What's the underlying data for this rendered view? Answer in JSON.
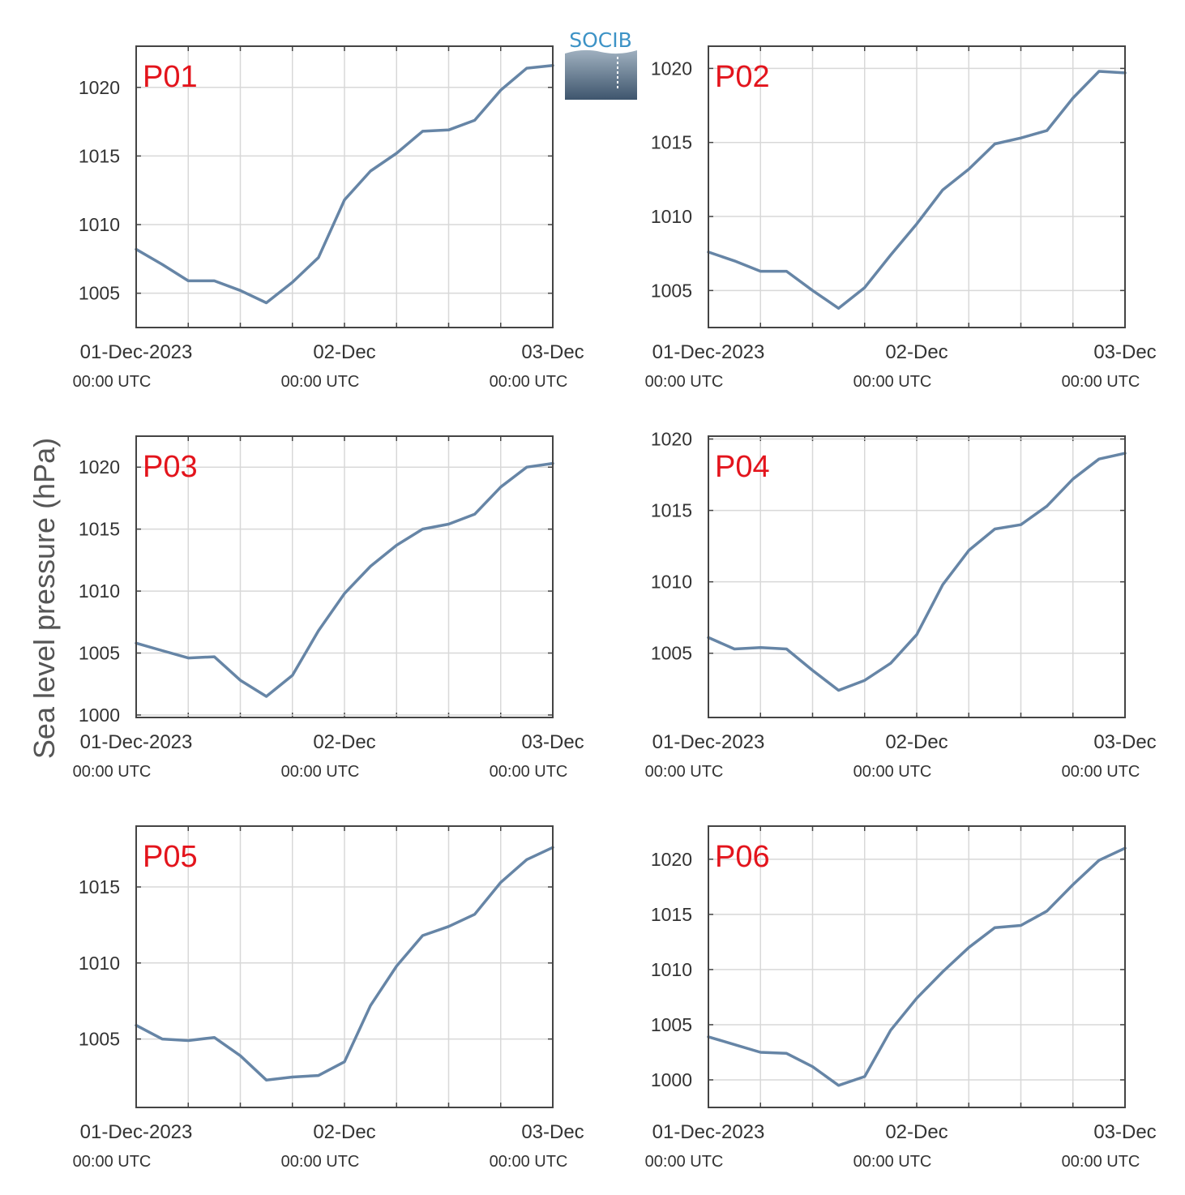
{
  "figure": {
    "ylabel": "Sea level pressure (hPa)",
    "logo_text": "SOCIB",
    "colors": {
      "line": "#6685a6",
      "grid": "#d8d8d8",
      "frame": "#444444",
      "panel_label": "#e3141c",
      "logo_text": "#3d93c6"
    }
  },
  "chart_data": [
    {
      "type": "line",
      "panel_label": "P01",
      "x": [
        "01-Dec-2023 00:00",
        "01-Dec-2023 03:00",
        "01-Dec-2023 06:00",
        "01-Dec-2023 09:00",
        "01-Dec-2023 12:00",
        "01-Dec-2023 15:00",
        "01-Dec-2023 18:00",
        "01-Dec-2023 21:00",
        "02-Dec-2023 00:00",
        "02-Dec-2023 03:00",
        "02-Dec-2023 06:00",
        "02-Dec-2023 09:00",
        "02-Dec-2023 12:00",
        "02-Dec-2023 15:00",
        "02-Dec-2023 18:00",
        "02-Dec-2023 21:00",
        "03-Dec-2023 00:00"
      ],
      "y": [
        1008.2,
        1007.1,
        1005.9,
        1005.9,
        1005.2,
        1004.3,
        1005.8,
        1007.6,
        1011.8,
        1013.9,
        1015.2,
        1016.8,
        1016.9,
        1017.6,
        1019.8,
        1021.4,
        1021.6
      ],
      "ylim": [
        1002.5,
        1023.0
      ],
      "yticks": [
        1005,
        1010,
        1015,
        1020
      ],
      "xticks": [
        {
          "line1": "01-Dec-2023",
          "line2": "00:00 UTC"
        },
        {
          "line1": "02-Dec",
          "line2": "00:00 UTC"
        },
        {
          "line1": "03-Dec",
          "line2": "00:00 UTC"
        }
      ],
      "grid": true
    },
    {
      "type": "line",
      "panel_label": "P02",
      "x": [
        "01-Dec-2023 00:00",
        "01-Dec-2023 03:00",
        "01-Dec-2023 06:00",
        "01-Dec-2023 09:00",
        "01-Dec-2023 12:00",
        "01-Dec-2023 15:00",
        "01-Dec-2023 18:00",
        "01-Dec-2023 21:00",
        "02-Dec-2023 00:00",
        "02-Dec-2023 03:00",
        "02-Dec-2023 06:00",
        "02-Dec-2023 09:00",
        "02-Dec-2023 12:00",
        "02-Dec-2023 15:00",
        "02-Dec-2023 18:00",
        "02-Dec-2023 21:00",
        "03-Dec-2023 00:00"
      ],
      "y": [
        1007.6,
        1007.0,
        1006.3,
        1006.3,
        1005.0,
        1003.8,
        1005.2,
        1007.4,
        1009.5,
        1011.8,
        1013.2,
        1014.9,
        1015.3,
        1015.8,
        1018.0,
        1019.8,
        1019.7
      ],
      "ylim": [
        1002.5,
        1021.5
      ],
      "yticks": [
        1005,
        1010,
        1015,
        1020
      ],
      "xticks": [
        {
          "line1": "01-Dec-2023",
          "line2": "00:00 UTC"
        },
        {
          "line1": "02-Dec",
          "line2": "00:00 UTC"
        },
        {
          "line1": "03-Dec",
          "line2": "00:00 UTC"
        }
      ],
      "grid": true
    },
    {
      "type": "line",
      "panel_label": "P03",
      "x": [
        "01-Dec-2023 00:00",
        "01-Dec-2023 03:00",
        "01-Dec-2023 06:00",
        "01-Dec-2023 09:00",
        "01-Dec-2023 12:00",
        "01-Dec-2023 15:00",
        "01-Dec-2023 18:00",
        "01-Dec-2023 21:00",
        "02-Dec-2023 00:00",
        "02-Dec-2023 03:00",
        "02-Dec-2023 06:00",
        "02-Dec-2023 09:00",
        "02-Dec-2023 12:00",
        "02-Dec-2023 15:00",
        "02-Dec-2023 18:00",
        "02-Dec-2023 21:00",
        "03-Dec-2023 00:00"
      ],
      "y": [
        1005.8,
        1005.2,
        1004.6,
        1004.7,
        1002.8,
        1001.5,
        1003.2,
        1006.8,
        1009.8,
        1012.0,
        1013.7,
        1015.0,
        1015.4,
        1016.2,
        1018.4,
        1020.0,
        1020.3
      ],
      "ylim": [
        999.8,
        1022.5
      ],
      "yticks": [
        1000,
        1005,
        1010,
        1015,
        1020
      ],
      "xticks": [
        {
          "line1": "01-Dec-2023",
          "line2": "00:00 UTC"
        },
        {
          "line1": "02-Dec",
          "line2": "00:00 UTC"
        },
        {
          "line1": "03-Dec",
          "line2": "00:00 UTC"
        }
      ],
      "grid": true
    },
    {
      "type": "line",
      "panel_label": "P04",
      "x": [
        "01-Dec-2023 00:00",
        "01-Dec-2023 03:00",
        "01-Dec-2023 06:00",
        "01-Dec-2023 09:00",
        "01-Dec-2023 12:00",
        "01-Dec-2023 15:00",
        "01-Dec-2023 18:00",
        "01-Dec-2023 21:00",
        "02-Dec-2023 00:00",
        "02-Dec-2023 03:00",
        "02-Dec-2023 06:00",
        "02-Dec-2023 09:00",
        "02-Dec-2023 12:00",
        "02-Dec-2023 15:00",
        "02-Dec-2023 18:00",
        "02-Dec-2023 21:00",
        "03-Dec-2023 00:00"
      ],
      "y": [
        1006.1,
        1005.3,
        1005.4,
        1005.3,
        1003.8,
        1002.4,
        1003.1,
        1004.3,
        1006.3,
        1009.8,
        1012.2,
        1013.7,
        1014.0,
        1015.3,
        1017.2,
        1018.6,
        1019.0
      ],
      "ylim": [
        1000.5,
        1020.2
      ],
      "yticks": [
        1005,
        1010,
        1015,
        1020
      ],
      "xticks": [
        {
          "line1": "01-Dec-2023",
          "line2": "00:00 UTC"
        },
        {
          "line1": "02-Dec",
          "line2": "00:00 UTC"
        },
        {
          "line1": "03-Dec",
          "line2": "00:00 UTC"
        }
      ],
      "grid": true
    },
    {
      "type": "line",
      "panel_label": "P05",
      "x": [
        "01-Dec-2023 00:00",
        "01-Dec-2023 03:00",
        "01-Dec-2023 06:00",
        "01-Dec-2023 09:00",
        "01-Dec-2023 12:00",
        "01-Dec-2023 15:00",
        "01-Dec-2023 18:00",
        "01-Dec-2023 21:00",
        "02-Dec-2023 00:00",
        "02-Dec-2023 03:00",
        "02-Dec-2023 06:00",
        "02-Dec-2023 09:00",
        "02-Dec-2023 12:00",
        "02-Dec-2023 15:00",
        "02-Dec-2023 18:00",
        "02-Dec-2023 21:00",
        "03-Dec-2023 00:00"
      ],
      "y": [
        1005.9,
        1005.0,
        1004.9,
        1005.1,
        1003.9,
        1002.3,
        1002.5,
        1002.6,
        1003.5,
        1007.2,
        1009.8,
        1011.8,
        1012.4,
        1013.2,
        1015.3,
        1016.8,
        1017.6
      ],
      "ylim": [
        1000.5,
        1019.0
      ],
      "yticks": [
        1005,
        1010,
        1015
      ],
      "xticks": [
        {
          "line1": "01-Dec-2023",
          "line2": "00:00 UTC"
        },
        {
          "line1": "02-Dec",
          "line2": "00:00 UTC"
        },
        {
          "line1": "03-Dec",
          "line2": "00:00 UTC"
        }
      ],
      "grid": true
    },
    {
      "type": "line",
      "panel_label": "P06",
      "x": [
        "01-Dec-2023 00:00",
        "01-Dec-2023 03:00",
        "01-Dec-2023 06:00",
        "01-Dec-2023 09:00",
        "01-Dec-2023 12:00",
        "01-Dec-2023 15:00",
        "01-Dec-2023 18:00",
        "01-Dec-2023 21:00",
        "02-Dec-2023 00:00",
        "02-Dec-2023 03:00",
        "02-Dec-2023 06:00",
        "02-Dec-2023 09:00",
        "02-Dec-2023 12:00",
        "02-Dec-2023 15:00",
        "02-Dec-2023 18:00",
        "02-Dec-2023 21:00",
        "03-Dec-2023 00:00"
      ],
      "y": [
        1003.9,
        1003.2,
        1002.5,
        1002.4,
        1001.2,
        999.5,
        1000.3,
        1004.5,
        1007.4,
        1009.8,
        1012.0,
        1013.8,
        1014.0,
        1015.3,
        1017.7,
        1019.9,
        1021.0
      ],
      "ylim": [
        997.5,
        1023.0
      ],
      "yticks": [
        1000,
        1005,
        1010,
        1015,
        1020
      ],
      "xticks": [
        {
          "line1": "01-Dec-2023",
          "line2": "00:00 UTC"
        },
        {
          "line1": "02-Dec",
          "line2": "00:00 UTC"
        },
        {
          "line1": "03-Dec",
          "line2": "00:00 UTC"
        }
      ],
      "grid": true
    }
  ]
}
